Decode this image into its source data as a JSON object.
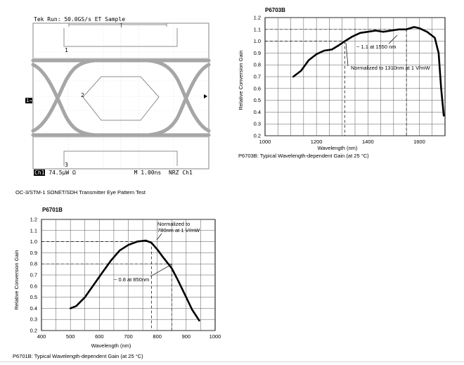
{
  "scope": {
    "header": "Tek Run: 50.0GS/s ET Sample",
    "footer_ch": "Ch1",
    "footer_scale": "74.5μW",
    "footer_unit": "Ω",
    "footer_time": "M 1.00ns",
    "footer_mode": "NRZ",
    "footer_src": "Ch1",
    "marker_t": "T",
    "marker_1": "1",
    "marker_2": "2",
    "marker_3": "3",
    "ch_marker": "1→",
    "caption": "OC-3/STM-1 SONET/SDH Transmitter Eye Pattern Test",
    "colors": {
      "trace": "#a6a6a6",
      "mask": "#8c8c8c",
      "grid": "#9a9a9a"
    }
  },
  "chart_data": [
    {
      "type": "line",
      "title": "P6703B",
      "xlabel": "Wavelength (nm)",
      "ylabel": "Relative Conversion Gain",
      "xlim": [
        1000,
        1700
      ],
      "ylim": [
        0.2,
        1.2
      ],
      "xticks": [
        "1000",
        "1200",
        "1400",
        "1600"
      ],
      "xtick_values": [
        1000,
        1200,
        1400,
        1600
      ],
      "yticks": [
        "0.2",
        "0.3",
        "0.4",
        "0.5",
        "0.6",
        "0.7",
        "0.8",
        "0.9",
        "1.0",
        "1.1",
        "1.2"
      ],
      "ytick_values": [
        0.2,
        0.3,
        0.4,
        0.5,
        0.6,
        0.7,
        0.8,
        0.9,
        1.0,
        1.1,
        1.2
      ],
      "grid": true,
      "x": [
        1110,
        1140,
        1170,
        1200,
        1230,
        1260,
        1290,
        1310,
        1340,
        1370,
        1400,
        1430,
        1460,
        1490,
        1520,
        1550,
        1580,
        1600,
        1630,
        1660,
        1675,
        1685,
        1695
      ],
      "y": [
        0.7,
        0.75,
        0.84,
        0.89,
        0.92,
        0.93,
        0.97,
        1.0,
        1.04,
        1.07,
        1.08,
        1.09,
        1.08,
        1.09,
        1.1,
        1.1,
        1.12,
        1.11,
        1.08,
        1.03,
        0.9,
        0.6,
        0.37
      ],
      "reference_lines": [
        {
          "x": 1310,
          "y": 1.0
        },
        {
          "x": 1550,
          "y": 1.1
        }
      ],
      "annotations": [
        "~ 1.1 at 1550 nm",
        "Normalized to 1310nm at 1 V/mW"
      ],
      "caption": "P6703B: Typical Wavelength-dependent Gain (at 25 °C)"
    },
    {
      "type": "line",
      "title": "P6701B",
      "xlabel": "Wavelength (nm)",
      "ylabel": "Relative Conversion Gain",
      "xlim": [
        400,
        1000
      ],
      "ylim": [
        0.2,
        1.2
      ],
      "xticks": [
        "400",
        "500",
        "600",
        "700",
        "800",
        "900",
        "1000"
      ],
      "xtick_values": [
        400,
        500,
        600,
        700,
        800,
        900,
        1000
      ],
      "yticks": [
        "0.2",
        "0.3",
        "0.4",
        "0.5",
        "0.6",
        "0.7",
        "0.8",
        "0.9",
        "1.0",
        "1.1",
        "1.2"
      ],
      "ytick_values": [
        0.2,
        0.3,
        0.4,
        0.5,
        0.6,
        0.7,
        0.8,
        0.9,
        1.0,
        1.1,
        1.2
      ],
      "grid": true,
      "x": [
        500,
        520,
        550,
        580,
        610,
        640,
        670,
        700,
        730,
        760,
        780,
        800,
        820,
        850,
        870,
        900,
        920,
        945
      ],
      "y": [
        0.4,
        0.42,
        0.5,
        0.61,
        0.72,
        0.83,
        0.92,
        0.97,
        1.0,
        1.01,
        0.99,
        0.93,
        0.86,
        0.76,
        0.66,
        0.5,
        0.39,
        0.29
      ],
      "reference_lines": [
        {
          "x": 780,
          "y": 1.0
        },
        {
          "x": 850,
          "y": 0.8
        }
      ],
      "annotations": [
        "Normalized to",
        "780nm at 1 V/mW",
        "~ 0.8 at 850nm"
      ],
      "caption": "P6701B: Typical Wavelength-dependent Gain (at 25 °C)"
    }
  ]
}
